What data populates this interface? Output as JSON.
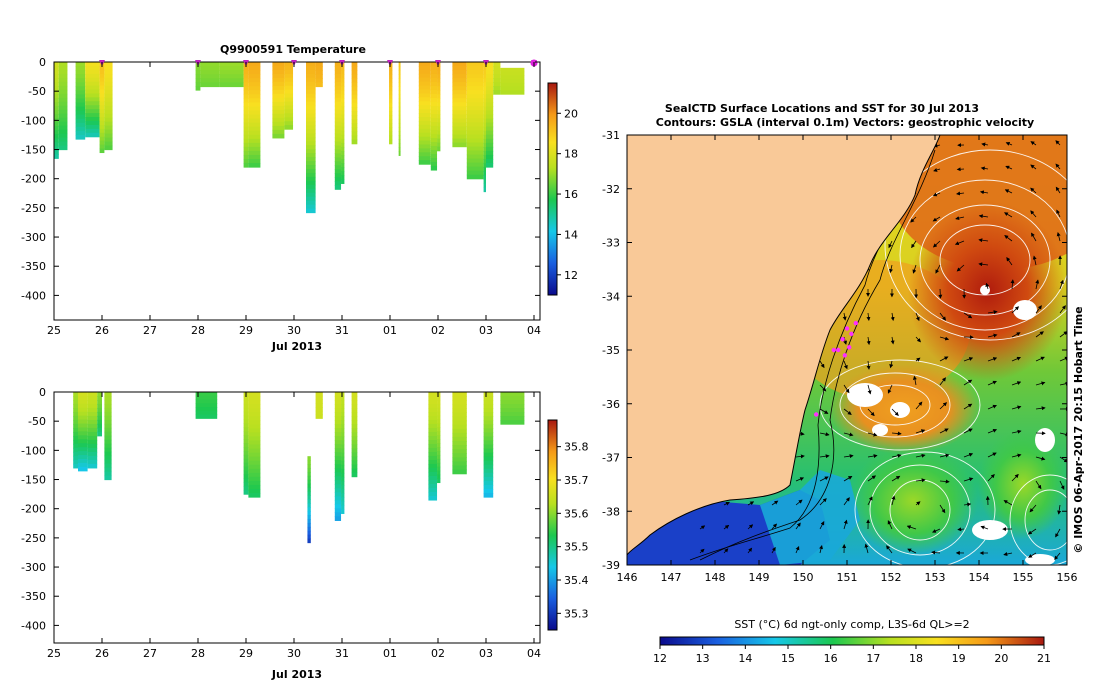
{
  "chart_data": [
    {
      "type": "heatmap",
      "title": "Q9900591  Temperature",
      "xlabel": "Jul 2013",
      "x_ticks": [
        "25",
        "26",
        "27",
        "28",
        "29",
        "30",
        "31",
        "01",
        "02",
        "03",
        "04"
      ],
      "y_ticks": [
        "0",
        "-50",
        "-100",
        "-150",
        "-200",
        "-250",
        "-300",
        "-350",
        "-400"
      ],
      "ylim": [
        -430,
        0
      ],
      "colorbar_ticks": [
        "12",
        "14",
        "16",
        "18",
        "20"
      ],
      "colorbar_range": [
        11,
        21.5
      ],
      "surface_markers_day": [
        1.0,
        3.0,
        4.0,
        5.0,
        6.0,
        7.0,
        8.0,
        9.0,
        10.0
      ],
      "latest_marker_day": 10.0,
      "profiles": [
        {
          "x0": 0.0,
          "x1": 0.1,
          "bottom": -165,
          "top": 0,
          "t_top": 17.8,
          "t_bottom": 14.8
        },
        {
          "x0": 0.1,
          "x1": 0.28,
          "bottom": -150,
          "top": 0,
          "t_top": 17.2,
          "t_bottom": 15.2
        },
        {
          "x0": 0.45,
          "x1": 0.65,
          "bottom": -132,
          "top": 0,
          "t_top": 17.0,
          "t_bottom": 14.5
        },
        {
          "x0": 0.65,
          "x1": 0.95,
          "bottom": -128,
          "top": 0,
          "t_top": 18.5,
          "t_bottom": 14.6
        },
        {
          "x0": 0.95,
          "x1": 1.05,
          "bottom": -155,
          "top": 0,
          "t_top": 19.2,
          "t_bottom": 16.3
        },
        {
          "x0": 1.05,
          "x1": 1.22,
          "bottom": -150,
          "top": 0,
          "t_top": 18.6,
          "t_bottom": 16.2
        },
        {
          "x0": 2.95,
          "x1": 3.05,
          "bottom": -48,
          "top": 0,
          "t_top": 16.8,
          "t_bottom": 16.4
        },
        {
          "x0": 3.05,
          "x1": 3.45,
          "bottom": -42,
          "top": 0,
          "t_top": 16.9,
          "t_bottom": 16.5
        },
        {
          "x0": 3.45,
          "x1": 3.95,
          "bottom": -42,
          "top": 0,
          "t_top": 17.0,
          "t_bottom": 16.5
        },
        {
          "x0": 3.95,
          "x1": 4.05,
          "bottom": -180,
          "top": 0,
          "t_top": 19.5,
          "t_bottom": 16.2
        },
        {
          "x0": 4.05,
          "x1": 4.3,
          "bottom": -180,
          "top": 0,
          "t_top": 19.6,
          "t_bottom": 16.0
        },
        {
          "x0": 4.55,
          "x1": 4.8,
          "bottom": -130,
          "top": 0,
          "t_top": 19.6,
          "t_bottom": 16.6
        },
        {
          "x0": 4.8,
          "x1": 4.98,
          "bottom": -115,
          "top": 0,
          "t_top": 19.4,
          "t_bottom": 16.8
        },
        {
          "x0": 5.25,
          "x1": 5.45,
          "bottom": -258,
          "top": 0,
          "t_top": 19.5,
          "t_bottom": 14.3
        },
        {
          "x0": 5.45,
          "x1": 5.6,
          "bottom": -42,
          "top": 0,
          "t_top": 19.6,
          "t_bottom": 19.2
        },
        {
          "x0": 5.85,
          "x1": 5.98,
          "bottom": -218,
          "top": 0,
          "t_top": 19.5,
          "t_bottom": 15.2
        },
        {
          "x0": 5.98,
          "x1": 6.05,
          "bottom": -208,
          "top": 0,
          "t_top": 19.3,
          "t_bottom": 15.5
        },
        {
          "x0": 6.2,
          "x1": 6.32,
          "bottom": -140,
          "top": 0,
          "t_top": 19.6,
          "t_bottom": 17.0
        },
        {
          "x0": 6.98,
          "x1": 7.05,
          "bottom": -140,
          "top": 0,
          "t_top": 19.5,
          "t_bottom": 17.2
        },
        {
          "x0": 7.18,
          "x1": 7.22,
          "bottom": -160,
          "top": 0,
          "t_top": 19.0,
          "t_bottom": 16.5
        },
        {
          "x0": 7.6,
          "x1": 7.85,
          "bottom": -175,
          "top": 0,
          "t_top": 19.6,
          "t_bottom": 16.0
        },
        {
          "x0": 7.85,
          "x1": 7.98,
          "bottom": -185,
          "top": 0,
          "t_top": 19.5,
          "t_bottom": 15.8
        },
        {
          "x0": 7.98,
          "x1": 8.05,
          "bottom": -152,
          "top": 0,
          "t_top": 19.6,
          "t_bottom": 16.5
        },
        {
          "x0": 8.3,
          "x1": 8.6,
          "bottom": -145,
          "top": 0,
          "t_top": 19.6,
          "t_bottom": 16.8
        },
        {
          "x0": 8.6,
          "x1": 8.95,
          "bottom": -200,
          "top": 0,
          "t_top": 19.0,
          "t_bottom": 16.0
        },
        {
          "x0": 8.95,
          "x1": 9.0,
          "bottom": -222,
          "top": 0,
          "t_top": 19.0,
          "t_bottom": 14.8
        },
        {
          "x0": 9.0,
          "x1": 9.15,
          "bottom": -180,
          "top": 0,
          "t_top": 18.6,
          "t_bottom": 15.3
        },
        {
          "x0": 9.15,
          "x1": 9.3,
          "bottom": -55,
          "top": 0,
          "t_top": 17.8,
          "t_bottom": 17.0
        },
        {
          "x0": 9.3,
          "x1": 9.8,
          "bottom": -55,
          "top": -10,
          "t_top": 17.6,
          "t_bottom": 17.2
        }
      ]
    },
    {
      "type": "heatmap",
      "title": "",
      "xlabel": "Jul 2013",
      "x_ticks": [
        "25",
        "26",
        "27",
        "28",
        "29",
        "30",
        "31",
        "01",
        "02",
        "03",
        "04"
      ],
      "y_ticks": [
        "0",
        "-50",
        "-100",
        "-150",
        "-200",
        "-250",
        "-300",
        "-350",
        "-400"
      ],
      "ylim": [
        -430,
        0
      ],
      "colorbar_ticks": [
        "35.3",
        "35.4",
        "35.5",
        "35.6",
        "35.7",
        "35.8"
      ],
      "colorbar_range": [
        35.25,
        35.88
      ],
      "profiles": [
        {
          "x0": 0.4,
          "x1": 0.5,
          "bottom": -130,
          "top": 0,
          "s_top": 35.62,
          "s_bottom": 35.46
        },
        {
          "x0": 0.5,
          "x1": 0.7,
          "bottom": -135,
          "top": 0,
          "s_top": 35.66,
          "s_bottom": 35.43
        },
        {
          "x0": 0.7,
          "x1": 0.9,
          "bottom": -130,
          "top": 0,
          "s_top": 35.65,
          "s_bottom": 35.45
        },
        {
          "x0": 0.9,
          "x1": 1.0,
          "bottom": -75,
          "top": 0,
          "s_top": 35.6,
          "s_bottom": 35.5
        },
        {
          "x0": 1.05,
          "x1": 1.2,
          "bottom": -150,
          "top": 0,
          "s_top": 35.62,
          "s_bottom": 35.48
        },
        {
          "x0": 2.95,
          "x1": 3.4,
          "bottom": -45,
          "top": 0,
          "s_top": 35.55,
          "s_bottom": 35.52
        },
        {
          "x0": 3.95,
          "x1": 4.05,
          "bottom": -175,
          "top": 0,
          "s_top": 35.65,
          "s_bottom": 35.5
        },
        {
          "x0": 4.05,
          "x1": 4.3,
          "bottom": -180,
          "top": 0,
          "s_top": 35.66,
          "s_bottom": 35.52
        },
        {
          "x0": 5.28,
          "x1": 5.35,
          "bottom": -258,
          "top": -110,
          "s_top": 35.6,
          "s_bottom": 35.3
        },
        {
          "x0": 5.45,
          "x1": 5.6,
          "bottom": -45,
          "top": 0,
          "s_top": 35.66,
          "s_bottom": 35.65
        },
        {
          "x0": 5.85,
          "x1": 5.98,
          "bottom": -220,
          "top": 0,
          "s_top": 35.66,
          "s_bottom": 35.4
        },
        {
          "x0": 5.98,
          "x1": 6.05,
          "bottom": -208,
          "top": 0,
          "s_top": 35.64,
          "s_bottom": 35.45
        },
        {
          "x0": 6.2,
          "x1": 6.32,
          "bottom": -145,
          "top": 0,
          "s_top": 35.66,
          "s_bottom": 35.52
        },
        {
          "x0": 7.8,
          "x1": 7.98,
          "bottom": -185,
          "top": 0,
          "s_top": 35.66,
          "s_bottom": 35.45
        },
        {
          "x0": 7.98,
          "x1": 8.05,
          "bottom": -155,
          "top": 0,
          "s_top": 35.66,
          "s_bottom": 35.52
        },
        {
          "x0": 8.3,
          "x1": 8.6,
          "bottom": -140,
          "top": 0,
          "s_top": 35.66,
          "s_bottom": 35.55
        },
        {
          "x0": 8.95,
          "x1": 9.15,
          "bottom": -180,
          "top": 0,
          "s_top": 35.65,
          "s_bottom": 35.42
        },
        {
          "x0": 9.3,
          "x1": 9.8,
          "bottom": -55,
          "top": 0,
          "s_top": 35.6,
          "s_bottom": 35.56
        }
      ]
    },
    {
      "type": "heatmap",
      "title_line1": "SealCTD Surface Locations and SST for 30 Jul 2013",
      "title_line2": "Contours: GSLA (interval 0.1m) Vectors: geostrophic velocity",
      "x_ticks": [
        "146",
        "147",
        "148",
        "149",
        "150",
        "151",
        "152",
        "153",
        "154",
        "155",
        "156"
      ],
      "y_ticks": [
        "-31",
        "-32",
        "-33",
        "-34",
        "-35",
        "-36",
        "-37",
        "-38",
        "-39"
      ],
      "xlim": [
        146,
        156
      ],
      "ylim": [
        -39,
        -31
      ],
      "colorbar_label": "SST (°C) 6d ngt-only comp, L3S-6d QL>=2",
      "colorbar_ticks": [
        "12",
        "13",
        "14",
        "15",
        "16",
        "17",
        "18",
        "19",
        "20",
        "21"
      ],
      "colorbar_range": [
        12,
        21
      ],
      "eddies": [
        {
          "lon": 154.2,
          "lat": -33.9,
          "sst": 21.0
        },
        {
          "lon": 152.3,
          "lat": -36.1,
          "sst": 19.3
        },
        {
          "lon": 152.5,
          "lat": -37.8,
          "sst": 16.5
        },
        {
          "lon": 155.0,
          "lat": -37.5,
          "sst": 16.8
        }
      ],
      "surface_locations": [
        {
          "lon": 151.0,
          "lat": -34.6
        },
        {
          "lon": 150.9,
          "lat": -34.8
        },
        {
          "lon": 150.8,
          "lat": -35.0
        },
        {
          "lon": 151.1,
          "lat": -34.7
        },
        {
          "lon": 150.95,
          "lat": -35.1
        },
        {
          "lon": 151.2,
          "lat": -34.5
        },
        {
          "lon": 150.7,
          "lat": -35.0
        },
        {
          "lon": 151.05,
          "lat": -34.95
        },
        {
          "lon": 150.3,
          "lat": -36.2
        }
      ],
      "side_label": "© IMOS 06-Apr-2017 20:15 Hobart Time"
    }
  ]
}
